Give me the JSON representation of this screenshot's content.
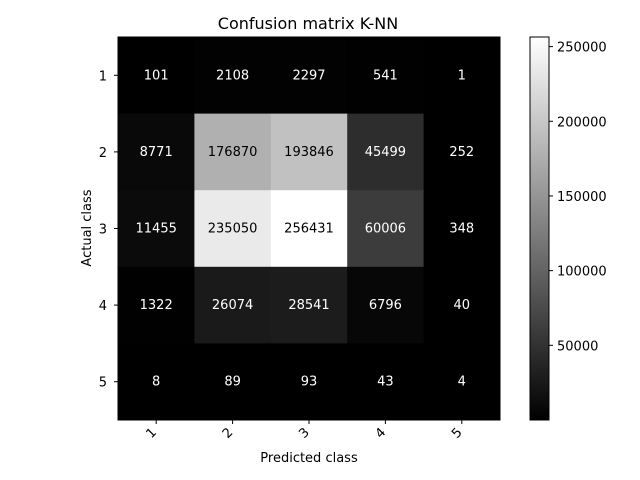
{
  "chart_data": {
    "type": "heatmap",
    "title": "Confusion matrix K-NN",
    "xlabel": "Predicted class",
    "ylabel": "Actual class",
    "x_categories": [
      "1",
      "2",
      "3",
      "4",
      "5"
    ],
    "y_categories": [
      "1",
      "2",
      "3",
      "4",
      "5"
    ],
    "values": [
      [
        101,
        2108,
        2297,
        541,
        1
      ],
      [
        8771,
        176870,
        193846,
        45499,
        252
      ],
      [
        11455,
        235050,
        256431,
        60006,
        348
      ],
      [
        1322,
        26074,
        28541,
        6796,
        40
      ],
      [
        8,
        89,
        93,
        43,
        4
      ]
    ],
    "colormap": "gray",
    "colorbar": {
      "range": [
        1,
        256431
      ],
      "ticks": [
        50000,
        100000,
        150000,
        200000,
        250000
      ]
    },
    "cell_label_threshold": 128216,
    "x_tick_rotation": 45,
    "grid": false
  }
}
